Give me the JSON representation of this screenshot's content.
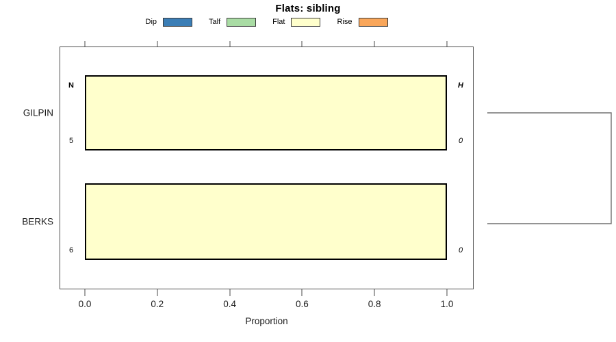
{
  "chart_data": {
    "type": "bar",
    "orientation": "horizontal",
    "stacked": true,
    "title": "Flats: sibling",
    "xlabel": "Proportion",
    "xlim": [
      0,
      1
    ],
    "xticks": [
      "0.0",
      "0.2",
      "0.4",
      "0.6",
      "0.8",
      "1.0"
    ],
    "xtick_values": [
      0,
      0.2,
      0.4,
      0.6,
      0.8,
      1.0
    ],
    "categories": [
      "GILPIN",
      "BERKS"
    ],
    "series": [
      {
        "name": "Dip",
        "color": "#3B7EB6",
        "values": [
          0,
          0
        ]
      },
      {
        "name": "Talf",
        "color": "#A9DCA4",
        "values": [
          0,
          0
        ]
      },
      {
        "name": "Flat",
        "color": "#FFFFCC",
        "values": [
          1,
          1
        ]
      },
      {
        "name": "Rise",
        "color": "#F9A65A",
        "values": [
          0,
          0
        ]
      }
    ],
    "legend_position": "top",
    "grid": false,
    "axis_sides": [
      "bottom",
      "top"
    ],
    "rows": [
      {
        "category": "GILPIN",
        "left_top": "N",
        "left_bottom": "5",
        "right_top": "H",
        "right_bottom": "0"
      },
      {
        "category": "BERKS",
        "left_top": "",
        "left_bottom": "6",
        "right_top": "",
        "right_bottom": "0"
      }
    ],
    "right_bracket": true,
    "bar_border_color": "#000000",
    "box_color": "#4a4a4a"
  }
}
